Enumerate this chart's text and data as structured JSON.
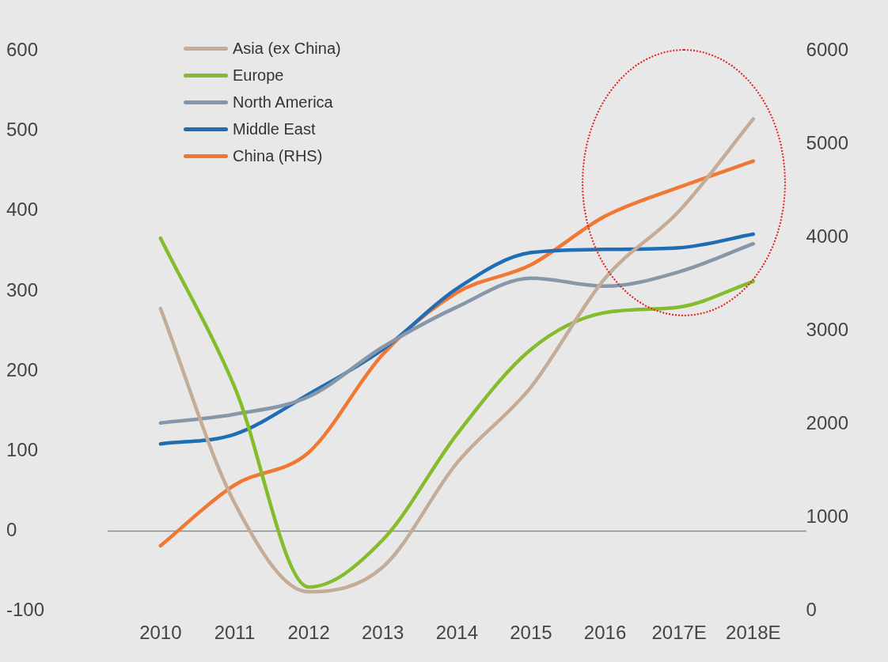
{
  "chart_data": {
    "type": "line",
    "categories": [
      "2010",
      "2011",
      "2012",
      "2013",
      "2014",
      "2015",
      "2016",
      "2017E",
      "2018E"
    ],
    "series": [
      {
        "name": "Asia (ex China)",
        "color": "#c3ad99",
        "values": [
          278,
          35,
          -76,
          -45,
          85,
          180,
          316,
          400,
          515
        ]
      },
      {
        "name": "Europe",
        "color": "#84bc2c",
        "values": [
          366,
          180,
          -70,
          -11,
          121,
          227,
          273,
          280,
          312
        ]
      },
      {
        "name": "North America",
        "color": "#8597a8",
        "values": [
          135,
          146,
          168,
          230,
          280,
          316,
          306,
          324,
          359
        ]
      },
      {
        "name": "Middle East",
        "color": "#1f6db5",
        "values": [
          109,
          121,
          171,
          227,
          303,
          348,
          352,
          354,
          371
        ]
      },
      {
        "name": "China (RHS)",
        "color": "#f07832",
        "axis": "y2",
        "values": [
          700,
          1350,
          1700,
          2750,
          3410,
          3710,
          4230,
          4540,
          4820
        ]
      }
    ],
    "ylim": [
      -100,
      600
    ],
    "yticks": [
      -100,
      0,
      100,
      200,
      300,
      400,
      500,
      600
    ],
    "y2lim": [
      0,
      6000
    ],
    "y2ticks": [
      0,
      1000,
      2000,
      3000,
      4000,
      5000,
      6000
    ],
    "ref_lines": [
      {
        "axis": "y",
        "value": 0,
        "color": "#8a8a8a"
      }
    ],
    "grid": false,
    "legend": "top left",
    "marker": "none",
    "line_style": "solid"
  }
}
